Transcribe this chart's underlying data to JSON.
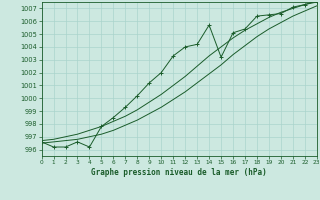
{
  "title": "Graphe pression niveau de la mer (hPa)",
  "bg_color": "#cce8e0",
  "grid_color": "#aad4cc",
  "line_color": "#1a5c2a",
  "xlim": [
    0,
    23
  ],
  "ylim": [
    995.5,
    1007.5
  ],
  "xticks": [
    0,
    1,
    2,
    3,
    4,
    5,
    6,
    7,
    8,
    9,
    10,
    11,
    12,
    13,
    14,
    15,
    16,
    17,
    18,
    19,
    20,
    21,
    22,
    23
  ],
  "yticks": [
    996,
    997,
    998,
    999,
    1000,
    1001,
    1002,
    1003,
    1004,
    1005,
    1006,
    1007
  ],
  "main_data": [
    [
      0,
      996.6
    ],
    [
      1,
      996.2
    ],
    [
      2,
      996.2
    ],
    [
      3,
      996.6
    ],
    [
      4,
      996.2
    ],
    [
      5,
      997.8
    ],
    [
      6,
      998.5
    ],
    [
      7,
      999.3
    ],
    [
      8,
      1000.2
    ],
    [
      9,
      1001.2
    ],
    [
      10,
      1002.0
    ],
    [
      11,
      1003.3
    ],
    [
      12,
      1004.0
    ],
    [
      13,
      1004.2
    ],
    [
      14,
      1005.7
    ],
    [
      15,
      1003.2
    ],
    [
      16,
      1005.1
    ],
    [
      17,
      1005.4
    ],
    [
      18,
      1006.4
    ],
    [
      19,
      1006.5
    ],
    [
      20,
      1006.6
    ],
    [
      21,
      1007.1
    ],
    [
      22,
      1007.3
    ],
    [
      23,
      1007.5
    ]
  ],
  "smooth_low": [
    [
      0,
      996.5
    ],
    [
      1,
      996.6
    ],
    [
      2,
      996.7
    ],
    [
      3,
      996.8
    ],
    [
      4,
      997.0
    ],
    [
      5,
      997.2
    ],
    [
      6,
      997.5
    ],
    [
      7,
      997.9
    ],
    [
      8,
      998.3
    ],
    [
      9,
      998.8
    ],
    [
      10,
      999.3
    ],
    [
      11,
      999.9
    ],
    [
      12,
      1000.5
    ],
    [
      13,
      1001.2
    ],
    [
      14,
      1001.9
    ],
    [
      15,
      1002.6
    ],
    [
      16,
      1003.4
    ],
    [
      17,
      1004.1
    ],
    [
      18,
      1004.8
    ],
    [
      19,
      1005.4
    ],
    [
      20,
      1005.9
    ],
    [
      21,
      1006.4
    ],
    [
      22,
      1006.8
    ],
    [
      23,
      1007.2
    ]
  ],
  "smooth_high": [
    [
      0,
      996.7
    ],
    [
      1,
      996.8
    ],
    [
      2,
      997.0
    ],
    [
      3,
      997.2
    ],
    [
      4,
      997.5
    ],
    [
      5,
      997.8
    ],
    [
      6,
      998.2
    ],
    [
      7,
      998.6
    ],
    [
      8,
      999.1
    ],
    [
      9,
      999.7
    ],
    [
      10,
      1000.3
    ],
    [
      11,
      1001.0
    ],
    [
      12,
      1001.7
    ],
    [
      13,
      1002.5
    ],
    [
      14,
      1003.3
    ],
    [
      15,
      1004.0
    ],
    [
      16,
      1004.7
    ],
    [
      17,
      1005.3
    ],
    [
      18,
      1005.8
    ],
    [
      19,
      1006.3
    ],
    [
      20,
      1006.7
    ],
    [
      21,
      1007.0
    ],
    [
      22,
      1007.3
    ],
    [
      23,
      1007.6
    ]
  ]
}
